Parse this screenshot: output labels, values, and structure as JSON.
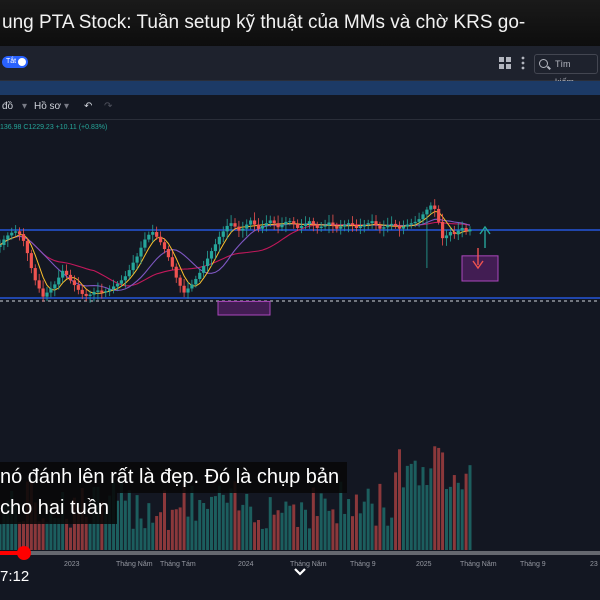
{
  "video": {
    "title": "ung PTA Stock: Tuần setup kỹ thuật của MMs và chờ KRS go-",
    "caption_lines": [
      "nó đánh lên rất là đẹp. Đó là chụp bản",
      "cho hai tuần"
    ],
    "current_time": "7:12",
    "progress_fraction": 0.04
  },
  "tv_header": {
    "toggle_label": "Tắt",
    "search_placeholder": "Tìm kiếm...",
    "tool_do": "đồ",
    "tool_profile": "Hồ sơ",
    "ohlc": "136.98  C1229.23  +10.11 (+0.83%)"
  },
  "time_axis": [
    "2023",
    "Tháng Năm",
    "Tháng Tám",
    "2024",
    "Tháng Năm",
    "Tháng 9",
    "2025",
    "Tháng Năm",
    "Tháng 9",
    "23"
  ],
  "colors": {
    "up": "#26a69a",
    "down": "#ef5350",
    "level_line": "#2962ff",
    "box": "#9c27b0",
    "progress": "#ff0000"
  },
  "icons": [
    "grid-icon",
    "search-icon",
    "undo-icon",
    "redo-icon",
    "chevron-down-icon",
    "arrow-up-icon",
    "arrow-down-icon"
  ],
  "chart_data": {
    "type": "candlestick",
    "resistance_level": 1,
    "support_level": 0,
    "closes": [
      0.78,
      0.86,
      0.92,
      0.96,
      0.98,
      0.94,
      0.84,
      0.66,
      0.44,
      0.26,
      0.14,
      0.02,
      0.08,
      0.14,
      0.2,
      0.3,
      0.4,
      0.34,
      0.26,
      0.19,
      0.12,
      0.06,
      0.03,
      0.05,
      0.09,
      0.11,
      0.08,
      0.1,
      0.13,
      0.17,
      0.21,
      0.26,
      0.32,
      0.41,
      0.52,
      0.61,
      0.74,
      0.86,
      0.93,
      0.97,
      0.9,
      0.82,
      0.72,
      0.6,
      0.46,
      0.3,
      0.18,
      0.08,
      0.14,
      0.2,
      0.28,
      0.37,
      0.47,
      0.58,
      0.69,
      0.79,
      0.9,
      0.98,
      1.06,
      1.1,
      1.05,
      0.99,
      1.02,
      1.08,
      1.14,
      1.08,
      1.02,
      1.06,
      1.1,
      1.14,
      1.1,
      1.04,
      1.08,
      1.12,
      1.13,
      1.09,
      1.03,
      1.06,
      1.09,
      1.13,
      1.08,
      1.03,
      1.05,
      1.07,
      1.11,
      1.06,
      1.02,
      1.05,
      1.08,
      1.1,
      1.07,
      1.03,
      1.05,
      1.08,
      1.1,
      1.13,
      1.07,
      1.02,
      1.04,
      1.07,
      1.09,
      1.06,
      1.02,
      1.05,
      1.08,
      1.1,
      1.12,
      1.16,
      1.23,
      1.3,
      1.36,
      1.31,
      1.12,
      0.88,
      0.92,
      0.97,
      0.94,
      0.99,
      1.03,
      0.98,
      1.01
    ]
  }
}
